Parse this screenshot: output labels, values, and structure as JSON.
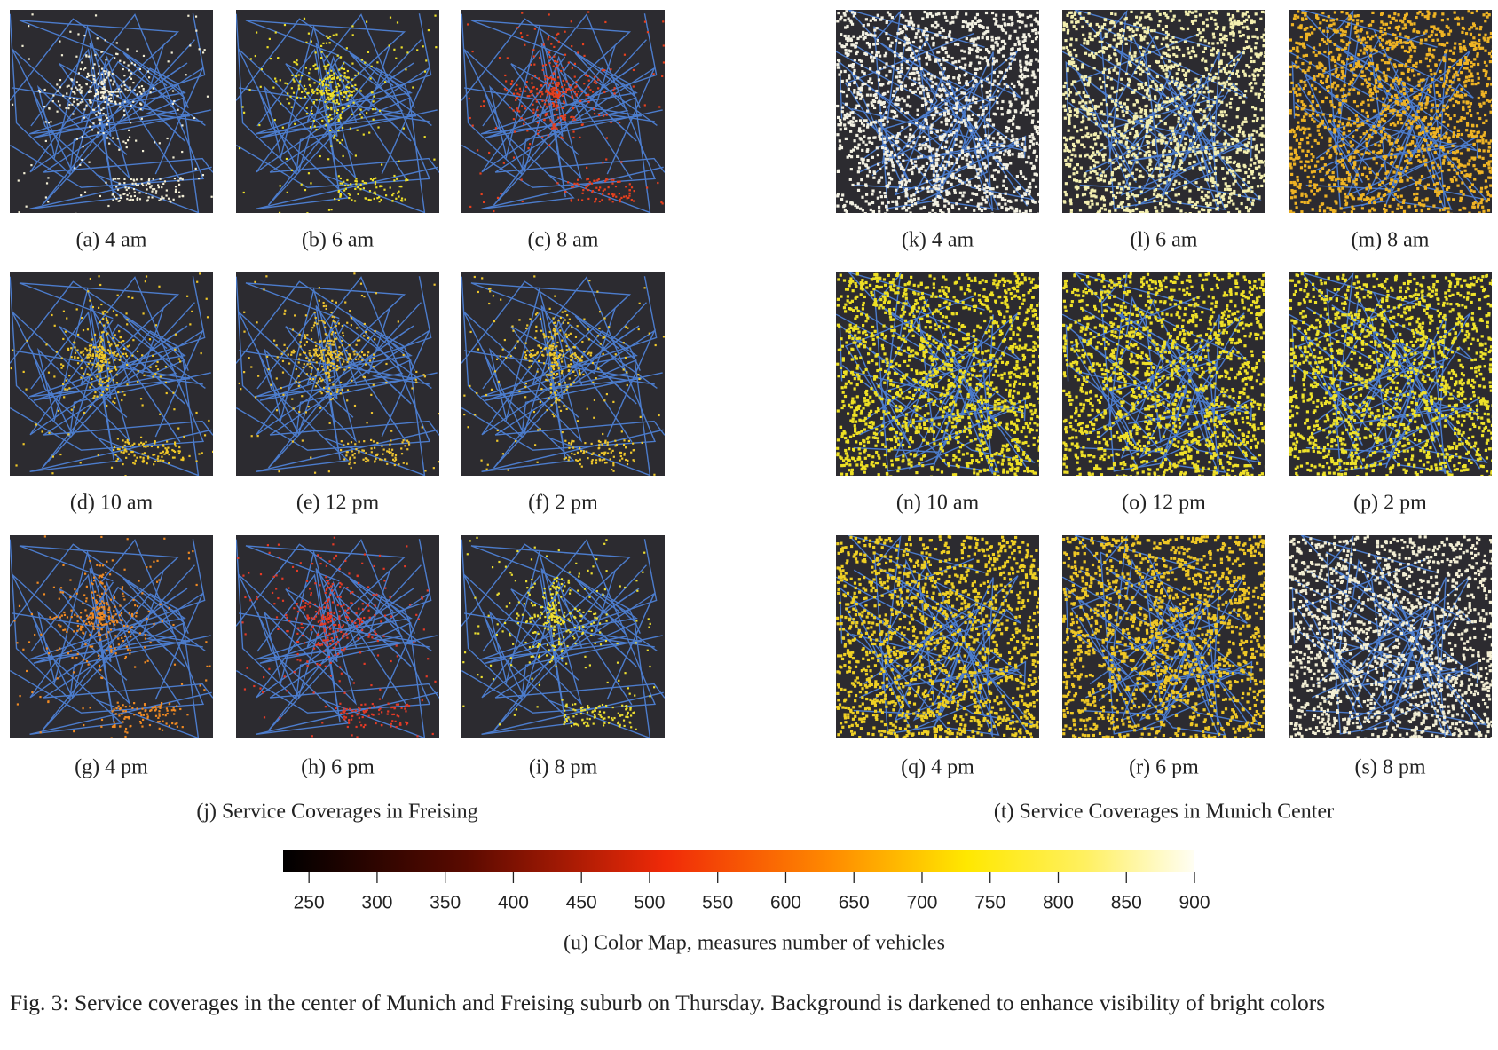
{
  "groups": [
    {
      "caption": "(j) Service Coverages in Freising",
      "panels": [
        {
          "caption": "(a) 4 am",
          "color": "#f3efd6"
        },
        {
          "caption": "(b) 6 am",
          "color": "#eee028"
        },
        {
          "caption": "(c) 8 am",
          "color": "#e8401e"
        },
        {
          "caption": "(d) 10 am",
          "color": "#f0c828"
        },
        {
          "caption": "(e) 12 pm",
          "color": "#eec430"
        },
        {
          "caption": "(f) 2 pm",
          "color": "#efc82c"
        },
        {
          "caption": "(g) 4 pm",
          "color": "#f08a22"
        },
        {
          "caption": "(h) 6 pm",
          "color": "#e43a26"
        },
        {
          "caption": "(i) 8 pm",
          "color": "#eee030"
        }
      ]
    },
    {
      "caption": "(t) Service Coverages in Munich Center",
      "panels": [
        {
          "caption": "(k) 4 am",
          "color": "#f2f0e2"
        },
        {
          "caption": "(l) 6 am",
          "color": "#f3efb0"
        },
        {
          "caption": "(m) 8 am",
          "color": "#efb424"
        },
        {
          "caption": "(n) 10 am",
          "color": "#eee024"
        },
        {
          "caption": "(o) 12 pm",
          "color": "#efe028"
        },
        {
          "caption": "(p) 2 pm",
          "color": "#eee22a"
        },
        {
          "caption": "(q) 4 pm",
          "color": "#efd024"
        },
        {
          "caption": "(r) 6 pm",
          "color": "#efc826"
        },
        {
          "caption": "(s) 8 pm",
          "color": "#f2eed4"
        }
      ]
    }
  ],
  "colorbar": {
    "label": "(u) Color Map, measures number of vehicles",
    "range": [
      231,
      900
    ],
    "ticks": [
      250,
      300,
      350,
      400,
      450,
      500,
      550,
      600,
      650,
      700,
      750,
      800,
      850,
      900
    ]
  },
  "figure_caption": "Fig. 3: Service coverages in the center of Munich and Freising suburb on Thursday. Background is darkened to enhance visibility of bright colors"
}
